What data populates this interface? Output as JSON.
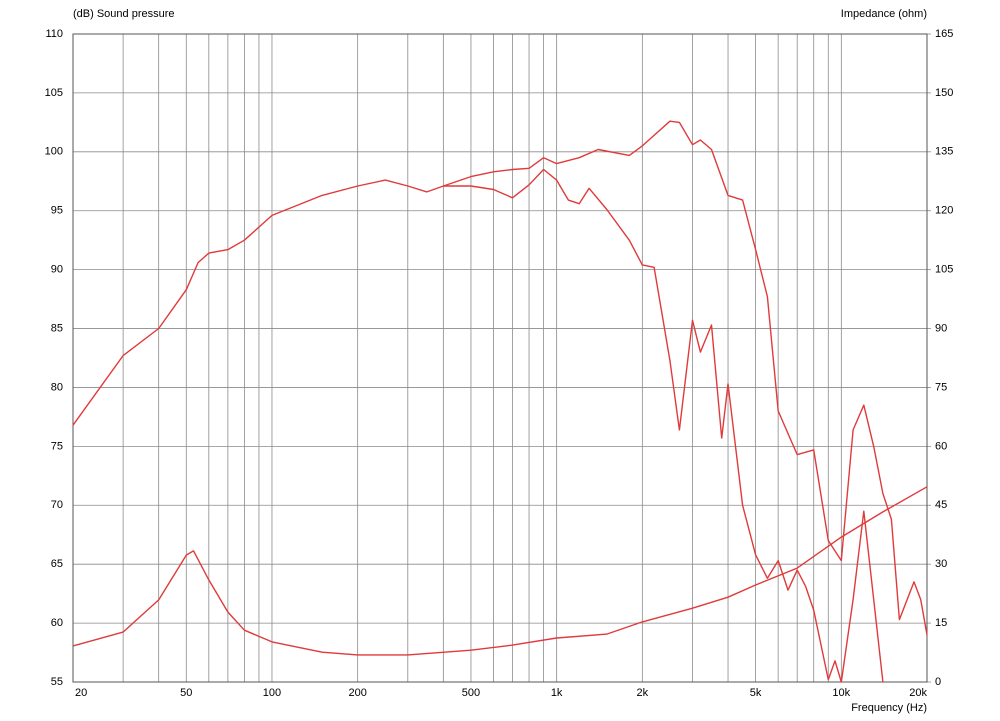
{
  "chart_data": {
    "type": "line",
    "y_label": "(dB)  Sound pressure",
    "y2_label": "Impedance  (ohm)",
    "x_label": "Frequency  (Hz)",
    "log_x": true,
    "grid": true,
    "xlim": [
      20,
      20000
    ],
    "xticks": [
      20,
      50,
      100,
      200,
      500,
      {
        "value": 1000,
        "label": "1k"
      },
      {
        "value": 2000,
        "label": "2k"
      },
      {
        "value": 5000,
        "label": "5k"
      },
      {
        "value": 10000,
        "label": "10k"
      },
      {
        "value": 20000,
        "label": "20k"
      }
    ],
    "xgrid": [
      30,
      40,
      60,
      70,
      80,
      90,
      300,
      400,
      600,
      700,
      800,
      900,
      3000,
      4000,
      6000,
      7000,
      8000,
      9000
    ],
    "ylim": [
      55,
      110
    ],
    "yticks": [
      55,
      60,
      65,
      70,
      75,
      80,
      85,
      90,
      95,
      100,
      105,
      110
    ],
    "y2lim": [
      0,
      165
    ],
    "y2ticks": [
      0,
      15,
      30,
      45,
      60,
      75,
      90,
      105,
      120,
      135,
      150,
      165
    ],
    "series": [
      {
        "color": "#e03a3a",
        "x": [
          20,
          30,
          40,
          50,
          55,
          60,
          70,
          80,
          100,
          150,
          200,
          250,
          300,
          350,
          400,
          500,
          600,
          700,
          800,
          900,
          1000,
          1200,
          1400,
          1800,
          2000,
          2500,
          2700,
          3000,
          3200,
          3500,
          4000,
          4500,
          5000,
          5500,
          6000,
          7000,
          8000,
          9000,
          10000,
          11000,
          12000,
          13000,
          14000,
          15000,
          16000,
          18000,
          19000,
          20000
        ],
        "values": [
          76.8,
          82.7,
          85.0,
          88.3,
          90.6,
          91.4,
          91.7,
          92.5,
          94.6,
          96.3,
          97.1,
          97.6,
          97.1,
          96.6,
          97.1,
          97.9,
          98.3,
          98.5,
          98.6,
          99.5,
          99.0,
          99.5,
          100.2,
          99.7,
          100.5,
          102.6,
          102.5,
          100.6,
          101.0,
          100.2,
          96.3,
          95.9,
          91.7,
          87.7,
          78.0,
          74.3,
          74.7,
          67.0,
          65.3,
          76.4,
          78.5,
          75.0,
          71.0,
          68.8,
          60.3,
          63.5,
          62.0,
          59.0
        ]
      },
      {
        "color": "#e03a3a",
        "x": [
          400,
          500,
          600,
          700,
          800,
          900,
          1000,
          1100,
          1200,
          1300,
          1500,
          1800,
          2000,
          2200,
          2500,
          2700,
          3000,
          3200,
          3500,
          3800,
          4000,
          4500,
          5000,
          5500,
          6000,
          6500,
          7000,
          7500,
          8000,
          9000,
          9500,
          10000,
          11000,
          12000,
          13000,
          14000
        ],
        "values": [
          97.1,
          97.1,
          96.8,
          96.1,
          97.2,
          98.5,
          97.6,
          95.9,
          95.6,
          96.9,
          95.1,
          92.5,
          90.4,
          90.2,
          82.3,
          76.4,
          85.7,
          83.0,
          85.3,
          75.7,
          80.3,
          70.0,
          65.8,
          63.8,
          65.3,
          62.8,
          64.5,
          63.1,
          61.1,
          55.2,
          56.8,
          55.0,
          62.0,
          69.5,
          62.0,
          55.0
        ]
      },
      {
        "color": "#e03a3a",
        "axis": "y2",
        "x": [
          20,
          30,
          40,
          50,
          53,
          60,
          70,
          80,
          100,
          150,
          200,
          300,
          500,
          700,
          1000,
          1500,
          2000,
          3000,
          4000,
          5000,
          7000,
          10000,
          14000,
          20000
        ],
        "values": [
          9.2,
          12.7,
          20.9,
          32.3,
          33.4,
          26.0,
          17.8,
          13.2,
          10.2,
          7.6,
          6.9,
          6.9,
          8.1,
          9.4,
          11.2,
          12.2,
          15.3,
          18.8,
          21.6,
          24.7,
          29.0,
          36.9,
          43.3,
          49.7
        ]
      }
    ]
  }
}
